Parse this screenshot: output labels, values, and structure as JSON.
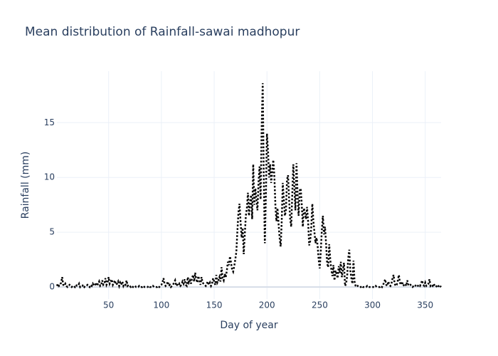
{
  "chart_data": {
    "type": "line",
    "title": "Mean distribution of Rainfall-sawai madhopur",
    "x_label": "Day of year",
    "y_label": "Rainfall (mm)",
    "x": [
      1,
      2,
      3,
      4,
      5,
      6,
      7,
      8,
      9,
      10,
      11,
      12,
      13,
      14,
      15,
      16,
      17,
      18,
      19,
      20,
      21,
      22,
      23,
      24,
      25,
      26,
      27,
      28,
      29,
      30,
      31,
      32,
      33,
      34,
      35,
      36,
      37,
      38,
      39,
      40,
      41,
      42,
      43,
      44,
      45,
      46,
      47,
      48,
      49,
      50,
      51,
      52,
      53,
      54,
      55,
      56,
      57,
      58,
      59,
      60,
      61,
      62,
      63,
      64,
      65,
      66,
      67,
      68,
      69,
      70,
      71,
      72,
      73,
      74,
      75,
      76,
      77,
      78,
      79,
      80,
      81,
      82,
      83,
      84,
      85,
      86,
      87,
      88,
      89,
      90,
      91,
      92,
      93,
      94,
      95,
      96,
      97,
      98,
      99,
      100,
      101,
      102,
      103,
      104,
      105,
      106,
      107,
      108,
      109,
      110,
      111,
      112,
      113,
      114,
      115,
      116,
      117,
      118,
      119,
      120,
      121,
      122,
      123,
      124,
      125,
      126,
      127,
      128,
      129,
      130,
      131,
      132,
      133,
      134,
      135,
      136,
      137,
      138,
      139,
      140,
      141,
      142,
      143,
      144,
      145,
      146,
      147,
      148,
      149,
      150,
      151,
      152,
      153,
      154,
      155,
      156,
      157,
      158,
      159,
      160,
      161,
      162,
      163,
      164,
      165,
      166,
      167,
      168,
      169,
      170,
      171,
      172,
      173,
      174,
      175,
      176,
      177,
      178,
      179,
      180,
      181,
      182,
      183,
      184,
      185,
      186,
      187,
      188,
      189,
      190,
      191,
      192,
      193,
      194,
      195,
      196,
      197,
      198,
      199,
      200,
      201,
      202,
      203,
      204,
      205,
      206,
      207,
      208,
      209,
      210,
      211,
      212,
      213,
      214,
      215,
      216,
      217,
      218,
      219,
      220,
      221,
      222,
      223,
      224,
      225,
      226,
      227,
      228,
      229,
      230,
      231,
      232,
      233,
      234,
      235,
      236,
      237,
      238,
      239,
      240,
      241,
      242,
      243,
      244,
      245,
      246,
      247,
      248,
      249,
      250,
      251,
      252,
      253,
      254,
      255,
      256,
      257,
      258,
      259,
      260,
      261,
      262,
      263,
      264,
      265,
      266,
      267,
      268,
      269,
      270,
      271,
      272,
      273,
      274,
      275,
      276,
      277,
      278,
      279,
      280,
      281,
      282,
      283,
      284,
      285,
      286,
      287,
      288,
      289,
      290,
      291,
      292,
      293,
      294,
      295,
      296,
      297,
      298,
      299,
      300,
      301,
      302,
      303,
      304,
      305,
      306,
      307,
      308,
      309,
      310,
      311,
      312,
      313,
      314,
      315,
      316,
      317,
      318,
      319,
      320,
      321,
      322,
      323,
      324,
      325,
      326,
      327,
      328,
      329,
      330,
      331,
      332,
      333,
      334,
      335,
      336,
      337,
      338,
      339,
      340,
      341,
      342,
      343,
      344,
      345,
      346,
      347,
      348,
      349,
      350,
      351,
      352,
      353,
      354,
      355,
      356,
      357,
      358,
      359,
      360,
      361,
      362,
      363,
      364,
      365
    ],
    "series": [
      {
        "name": "Rainfall",
        "color": "#000000",
        "dash": "dot",
        "values": [
          0.1,
          0.3,
          0.1,
          0.2,
          0.4,
          0.9,
          0.2,
          0.1,
          0.3,
          0.1,
          0,
          0.1,
          0.2,
          0.1,
          0,
          0.1,
          0.1,
          0,
          0.2,
          0.1,
          0.1,
          0.3,
          0,
          0.1,
          0.1,
          0.2,
          0,
          0.1,
          0.1,
          0.2,
          0.1,
          0,
          0.2,
          0.1,
          0.3,
          0.1,
          0.2,
          0.4,
          0.1,
          0.3,
          0.5,
          0.1,
          0.2,
          0.6,
          0.2,
          0.3,
          0.8,
          0.2,
          0.4,
          0.9,
          0.3,
          0.5,
          0.7,
          0.2,
          0.4,
          0.6,
          0.2,
          0.3,
          0.5,
          0.1,
          0.4,
          0.2,
          0.5,
          0.1,
          0.3,
          0.2,
          0.6,
          0.1,
          0.2,
          0.1,
          0,
          0.1,
          0,
          0,
          0.1,
          0,
          0,
          0,
          0.1,
          0,
          0,
          0,
          0.1,
          0,
          0,
          0,
          0,
          0.1,
          0,
          0,
          0,
          0.1,
          0,
          0,
          0,
          0,
          0.1,
          0,
          0.1,
          0.2,
          0.4,
          0.8,
          0.3,
          0.1,
          0.2,
          0.5,
          0.1,
          0.2,
          0,
          0.1,
          0.2,
          0.4,
          0.6,
          0.1,
          0.2,
          0.1,
          0.3,
          0.1,
          0.2,
          0.5,
          0.3,
          0.7,
          0.2,
          0.1,
          0.9,
          0.4,
          0.6,
          0.3,
          0.8,
          1.1,
          0.5,
          1.3,
          0.7,
          0.4,
          1,
          0.6,
          0.2,
          0.9,
          0.4,
          0.3,
          0.2,
          0.1,
          0.3,
          0.5,
          0.2,
          0.4,
          0.1,
          0.3,
          0.8,
          0.5,
          0.2,
          1.1,
          0.4,
          0.6,
          0.9,
          0.5,
          1.8,
          0.8,
          0.6,
          1.2,
          0.9,
          1.5,
          2.3,
          2.0,
          2.8,
          2.2,
          1.6,
          1.4,
          1.9,
          2.5,
          3.2,
          5.1,
          6.8,
          7.6,
          6.0,
          4.5,
          5.4,
          3.0,
          4.8,
          6.5,
          7.2,
          8.6,
          6.5,
          7.8,
          8.4,
          6.2,
          11.2,
          7.5,
          9.0,
          8.0,
          7.0,
          9.5,
          11.0,
          8.0,
          14.5,
          18.6,
          10.0,
          4.0,
          8.5,
          14.0,
          12.5,
          10.0,
          11.2,
          9.5,
          10.5,
          11.6,
          10.2,
          7.5,
          6.0,
          7.2,
          5.8,
          4.5,
          3.7,
          6.0,
          9.5,
          8.0,
          6.5,
          7.0,
          9.8,
          10.2,
          8.0,
          6.2,
          5.5,
          8.5,
          11.2,
          9.0,
          7.0,
          11.3,
          8.5,
          6.5,
          8.8,
          9.0,
          7.5,
          5.5,
          7.2,
          6.8,
          6.2,
          7.3,
          6.0,
          3.8,
          4.2,
          5.5,
          7.6,
          6.0,
          5.0,
          4.0,
          4.5,
          3.8,
          2.5,
          1.7,
          3.2,
          5.2,
          6.5,
          4.8,
          5.5,
          4.0,
          2.2,
          1.8,
          3.9,
          2.5,
          1.6,
          1.0,
          2.0,
          0.6,
          1.5,
          1.2,
          0.8,
          1.9,
          1.3,
          2.3,
          0.9,
          1.6,
          2.2,
          0.1,
          0.3,
          1.0,
          2.6,
          3.4,
          1.5,
          0.8,
          0.3,
          2.4,
          0.5,
          0.1,
          0,
          0.1,
          0,
          0,
          0,
          0.1,
          0,
          0,
          0,
          0,
          0.1,
          0,
          0,
          0,
          0,
          0,
          0,
          0,
          0.1,
          0,
          0,
          0,
          0,
          0.1,
          0,
          0.2,
          0.4,
          0.7,
          0.2,
          0.1,
          0.5,
          0.2,
          0.1,
          0.3,
          0.8,
          1.1,
          0.3,
          0.1,
          0.2,
          0.6,
          1.1,
          0.4,
          0.2,
          0.5,
          0.1,
          0.2,
          0.3,
          0.1,
          0.6,
          0.2,
          0.1,
          0.2,
          0.1,
          0,
          0.1,
          0.2,
          0.1,
          0,
          0.1,
          0.2,
          0.1,
          0.3,
          0.6,
          0.2,
          0.1,
          0.4,
          0.1,
          0.2,
          0.3,
          0.7,
          0.1,
          0.2,
          0.1,
          0.3,
          0.1,
          0,
          0.1,
          0.2,
          0,
          0.1,
          0
        ]
      }
    ],
    "xlim": [
      1,
      365
    ],
    "ylim": [
      -1.1,
      19.7
    ],
    "xticks": [
      50,
      100,
      150,
      200,
      250,
      300,
      350
    ],
    "yticks": [
      0,
      5,
      10,
      15
    ],
    "grid": true
  }
}
